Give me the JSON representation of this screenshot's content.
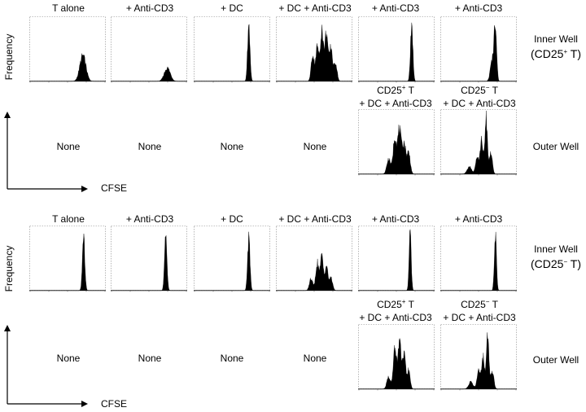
{
  "axis_labels": {
    "x": "CFSE",
    "y": "Frequency"
  },
  "side_labels": {
    "top_inner_line1": "Inner Well",
    "top_inner_open": "(CD25",
    "top_inner_sup": "+",
    "top_inner_close": " T)",
    "bottom_inner_line1": "Inner Well",
    "bottom_inner_open": "(CD25",
    "bottom_inner_sup": "−",
    "bottom_inner_close": " T)",
    "outer": "Outer Well"
  },
  "column_headers": [
    "T alone",
    "+ Anti-CD3",
    "+ DC",
    "+ DC + Anti-CD3",
    "+ Anti-CD3",
    "+ Anti-CD3"
  ],
  "none_label": "None",
  "outer_headers": [
    {
      "line1_main": "CD25",
      "line1_sup": "+",
      "line1_tail": " T",
      "line2": "+ DC + Anti-CD3"
    },
    {
      "line1_main": "CD25",
      "line1_sup": "−",
      "line1_tail": " T",
      "line2": "+ DC + Anti-CD3"
    }
  ],
  "colors": {
    "fill": "#000000",
    "frame": "#888888"
  },
  "chart_data": [
    {
      "type": "area",
      "title": "",
      "xlabel": "CFSE",
      "ylabel": "Frequency",
      "xlim": [
        0,
        100
      ],
      "ylim": [
        0,
        1
      ],
      "scale": "log",
      "inner_well": [
        {
          "header": "T alone",
          "peaks": [
            [
              70,
              0.42,
              4
            ]
          ]
        },
        {
          "header": "+ Anti-CD3",
          "peaks": [
            [
              74,
              0.22,
              4
            ]
          ]
        },
        {
          "header": "+ DC",
          "peaks": [
            [
              72,
              0.92,
              1.6
            ]
          ]
        },
        {
          "header": "+ DC + Anti-CD3",
          "peaks": [
            [
              48,
              0.42,
              2
            ],
            [
              54,
              0.55,
              2
            ],
            [
              60,
              0.85,
              2
            ],
            [
              66,
              0.8,
              2
            ],
            [
              72,
              0.55,
              2
            ],
            [
              78,
              0.3,
              2
            ]
          ]
        },
        {
          "header": "+ Anti-CD3",
          "peaks": [
            [
              70,
              0.92,
              1.6
            ]
          ]
        },
        {
          "header": "+ Anti-CD3",
          "peaks": [
            [
              68,
              0.35,
              2.5
            ],
            [
              72,
              0.9,
              1.6
            ]
          ]
        }
      ],
      "outer_well": [
        {
          "header": "CD25+ T + DC + Anti-CD3",
          "peaks": [
            [
              40,
              0.25,
              2.5
            ],
            [
              48,
              0.6,
              2.2
            ],
            [
              54,
              0.72,
              2.2
            ],
            [
              60,
              0.5,
              2.2
            ],
            [
              66,
              0.35,
              2.2
            ]
          ]
        },
        {
          "header": "CD25− T + DC + Anti-CD3",
          "peaks": [
            [
              38,
              0.12,
              3
            ],
            [
              48,
              0.3,
              2
            ],
            [
              54,
              0.55,
              2
            ],
            [
              60,
              0.9,
              1.6
            ],
            [
              66,
              0.35,
              2
            ]
          ]
        }
      ]
    },
    {
      "type": "area",
      "title": "",
      "xlabel": "CFSE",
      "ylabel": "Frequency",
      "xlim": [
        0,
        100
      ],
      "ylim": [
        0,
        1
      ],
      "scale": "log",
      "inner_well": [
        {
          "header": "T alone",
          "peaks": [
            [
              71,
              0.85,
              1.6
            ]
          ]
        },
        {
          "header": "+ Anti-CD3",
          "peaks": [
            [
              72,
              0.85,
              1.6
            ]
          ]
        },
        {
          "header": "+ DC",
          "peaks": [
            [
              72,
              0.85,
              1.6
            ]
          ]
        },
        {
          "header": "+ DC + Anti-CD3",
          "peaks": [
            [
              46,
              0.2,
              2.2
            ],
            [
              54,
              0.45,
              2
            ],
            [
              60,
              0.55,
              2
            ],
            [
              66,
              0.4,
              2
            ],
            [
              72,
              0.2,
              2.2
            ]
          ]
        },
        {
          "header": "+ Anti-CD3",
          "peaks": [
            [
              68,
              0.9,
              1.4
            ]
          ]
        },
        {
          "header": "+ Anti-CD3",
          "peaks": [
            [
              72,
              0.9,
              1.4
            ]
          ]
        }
      ],
      "outer_well": [
        {
          "header": "CD25+ T + DC + Anti-CD3",
          "peaks": [
            [
              40,
              0.2,
              2.5
            ],
            [
              48,
              0.65,
              2
            ],
            [
              54,
              0.8,
              2
            ],
            [
              60,
              0.55,
              2
            ],
            [
              66,
              0.3,
              2
            ]
          ]
        },
        {
          "header": "CD25− T + DC + Anti-CD3",
          "peaks": [
            [
              40,
              0.12,
              3
            ],
            [
              50,
              0.3,
              2
            ],
            [
              56,
              0.52,
              2
            ],
            [
              62,
              0.9,
              1.6
            ],
            [
              68,
              0.3,
              2
            ]
          ]
        }
      ]
    }
  ]
}
